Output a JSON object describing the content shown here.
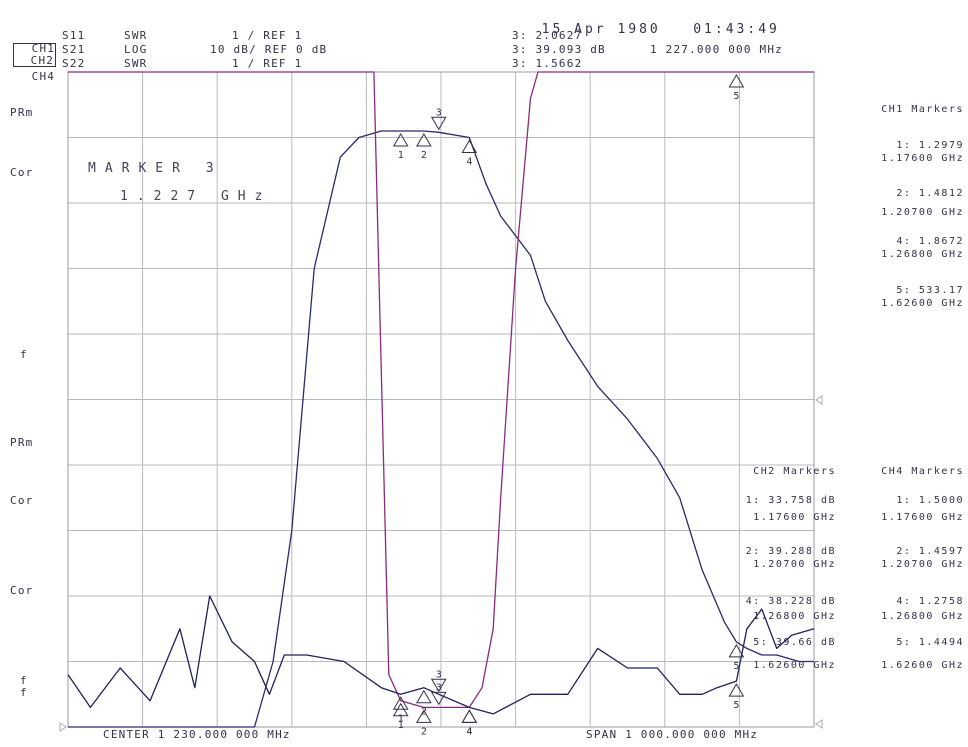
{
  "header": {
    "date": "15 Apr 1980",
    "time": "01:43:49",
    "channels": [
      {
        "ch": "CH1",
        "param": "S11",
        "fmt": "SWR",
        "scale": "1 / REF 1",
        "boxed": false
      },
      {
        "ch": "CH2",
        "param": "S21",
        "fmt": "LOG",
        "scale": "10 dB/ REF 0 dB",
        "boxed": true
      },
      {
        "ch": "CH4",
        "param": "S22",
        "fmt": "SWR",
        "scale": "1 / REF 1",
        "boxed": false
      }
    ],
    "active_readouts": [
      "3: 2.0627",
      "3: 39.093 dB",
      "3: 1.5662"
    ],
    "active_freq": "1 227.000 000 MHz"
  },
  "left_labels": [
    "PRm",
    "Cor",
    "f",
    "PRm",
    "Cor",
    "Cor",
    "f",
    "f"
  ],
  "marker_box": {
    "title": "MARKER 3",
    "freq": "1.227 GHz"
  },
  "footer": {
    "center": "CENTER 1 230.000 000 MHz",
    "span": "SPAN 1 000.000 000 MHz"
  },
  "ch1_markers": {
    "title": "CH1 Markers",
    "items": [
      {
        "value": "1: 1.2979",
        "freq": "1.17600 GHz"
      },
      {
        "value": "2: 1.4812",
        "freq": "1.20700 GHz"
      },
      {
        "value": "4: 1.8672",
        "freq": "1.26800 GHz"
      },
      {
        "value": "5: 533.17",
        "freq": "1.62600 GHz"
      }
    ]
  },
  "ch2_markers": {
    "title": "CH2 Markers",
    "items": [
      {
        "value": "1: 33.758 dB",
        "freq": "1.17600 GHz"
      },
      {
        "value": "2: 39.288 dB",
        "freq": "1.20700 GHz"
      },
      {
        "value": "4: 38.228 dB",
        "freq": "1.26800 GHz"
      },
      {
        "value": "5: 39.66 dB",
        "freq": "1.62600 GHz"
      }
    ]
  },
  "ch4_markers": {
    "title": "CH4 Markers",
    "items": [
      {
        "value": "1: 1.5000",
        "freq": "1.17600 GHz"
      },
      {
        "value": "2: 1.4597",
        "freq": "1.20700 GHz"
      },
      {
        "value": "4: 1.2758",
        "freq": "1.26800 GHz"
      },
      {
        "value": "5: 1.4494",
        "freq": "1.62600 GHz"
      }
    ]
  },
  "chart_data": {
    "type": "line",
    "xlabel": "",
    "ylabel": "",
    "x_unit": "GHz",
    "xlim": [
      0.73,
      1.73
    ],
    "grid": true,
    "grid_divisions": [
      10,
      10
    ],
    "series": [
      {
        "name": "S21",
        "color": "#2a2a6e",
        "x": [
          0.73,
          0.86,
          0.98,
          1.005,
          1.03,
          1.06,
          1.095,
          1.12,
          1.15,
          1.176,
          1.207,
          1.227,
          1.268,
          1.29,
          1.31,
          1.35,
          1.37,
          1.4,
          1.44,
          1.48,
          1.52,
          1.55,
          1.58,
          1.61,
          1.626,
          1.64,
          1.66,
          1.68,
          1.71,
          1.73
        ],
        "y": [
          0,
          0,
          0,
          1,
          3,
          7,
          8.7,
          9,
          9.1,
          9.1,
          9.1,
          9.08,
          9,
          8.3,
          7.8,
          7.2,
          6.5,
          5.9,
          5.2,
          4.7,
          4.1,
          3.5,
          2.4,
          1.6,
          1.3,
          1.2,
          1.1,
          1.1,
          1.0,
          1.0
        ]
      },
      {
        "name": "S11",
        "color": "#8a2b7c",
        "x": [
          0.73,
          0.9,
          1.03,
          1.14,
          1.16,
          1.176,
          1.207,
          1.227,
          1.268,
          1.285,
          1.3,
          1.31,
          1.33,
          1.35,
          1.36,
          1.37,
          1.73
        ],
        "y": [
          10,
          10,
          10,
          10,
          0.8,
          0.4,
          0.3,
          0.3,
          0.3,
          0.6,
          1.5,
          3.5,
          7,
          9.6,
          10,
          10,
          10
        ]
      },
      {
        "name": "S22",
        "color": "#20205e",
        "x": [
          0.73,
          0.76,
          0.8,
          0.84,
          0.88,
          0.9,
          0.92,
          0.95,
          0.98,
          1.0,
          1.02,
          1.05,
          1.1,
          1.15,
          1.176,
          1.207,
          1.227,
          1.268,
          1.3,
          1.35,
          1.4,
          1.44,
          1.48,
          1.52,
          1.55,
          1.58,
          1.6,
          1.626,
          1.64,
          1.66,
          1.68,
          1.7,
          1.73
        ],
        "y": [
          0.8,
          0.3,
          0.9,
          0.4,
          1.5,
          0.6,
          2.0,
          1.3,
          1.0,
          0.5,
          1.1,
          1.1,
          1.0,
          0.6,
          0.5,
          0.6,
          0.5,
          0.3,
          0.2,
          0.5,
          0.5,
          1.2,
          0.9,
          0.9,
          0.5,
          0.5,
          0.6,
          0.7,
          1.5,
          1.8,
          1.2,
          1.4,
          1.5
        ]
      }
    ],
    "markers": [
      {
        "id": "1",
        "x": 1.176
      },
      {
        "id": "2",
        "x": 1.207
      },
      {
        "id": "3",
        "x": 1.227
      },
      {
        "id": "4",
        "x": 1.268
      },
      {
        "id": "5",
        "x": 1.626
      }
    ]
  }
}
